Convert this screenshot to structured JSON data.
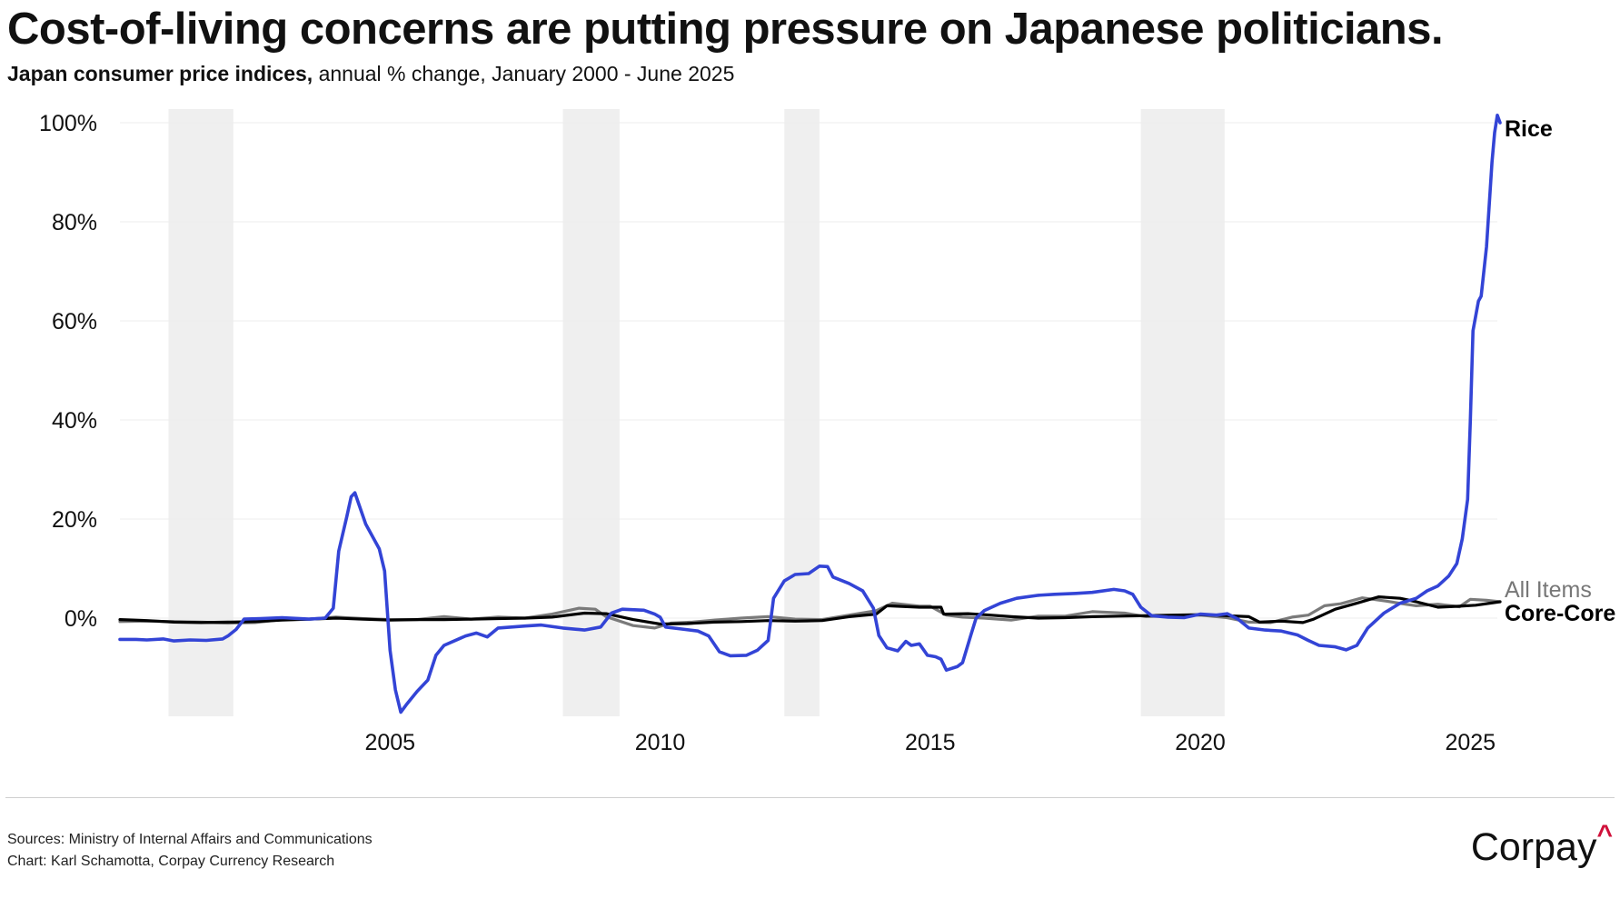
{
  "header": {
    "title": "Cost-of-living concerns are putting pressure on Japanese politicians.",
    "subtitle_bold": "Japan consumer price indices,",
    "subtitle_rest": " annual % change, January 2000 - June 2025"
  },
  "footer": {
    "sources": "Sources: Ministry of Internal Affairs and Communications",
    "credit": "Chart: Karl Schamotta, Corpay Currency Research",
    "logo_text": "Corpay",
    "logo_mark": "^"
  },
  "chart_data": {
    "type": "line",
    "title": "Cost-of-living concerns are putting pressure on Japanese politicians.",
    "subtitle": "Japan consumer price indices, annual % change, January 2000 - June 2025",
    "x_range": [
      2000.0,
      2025.5
    ],
    "ylim": [
      -20,
      102
    ],
    "y_ticks": [
      0,
      20,
      40,
      60,
      80,
      100
    ],
    "y_tick_labels": [
      "0%",
      "20%",
      "40%",
      "60%",
      "80%",
      "100%"
    ],
    "x_ticks": [
      2005,
      2010,
      2015,
      2020,
      2025
    ],
    "x_tick_labels": [
      "2005",
      "2010",
      "2015",
      "2020",
      "2025"
    ],
    "grid": "horizontal",
    "shaded_periods": [
      [
        2000.9,
        2002.1
      ],
      [
        2008.2,
        2009.25
      ],
      [
        2012.3,
        2012.95
      ],
      [
        2018.9,
        2020.45
      ]
    ],
    "shading_color": "#efefef",
    "series": [
      {
        "name": "Rice",
        "color": "#3344d6",
        "points": [
          [
            2000.0,
            -4.3
          ],
          [
            2000.3,
            -4.3
          ],
          [
            2000.5,
            -4.4
          ],
          [
            2000.8,
            -4.2
          ],
          [
            2001.0,
            -4.6
          ],
          [
            2001.3,
            -4.4
          ],
          [
            2001.6,
            -4.5
          ],
          [
            2001.9,
            -4.2
          ],
          [
            2002.0,
            -3.6
          ],
          [
            2002.15,
            -2.3
          ],
          [
            2002.3,
            -0.2
          ],
          [
            2002.6,
            -0.1
          ],
          [
            2003.0,
            0.1
          ],
          [
            2003.5,
            -0.2
          ],
          [
            2003.8,
            0.0
          ],
          [
            2003.95,
            2.0
          ],
          [
            2004.05,
            13.5
          ],
          [
            2004.2,
            20.5
          ],
          [
            2004.28,
            24.5
          ],
          [
            2004.35,
            25.3
          ],
          [
            2004.55,
            19.0
          ],
          [
            2004.8,
            14.0
          ],
          [
            2004.9,
            9.5
          ],
          [
            2005.0,
            -6.5
          ],
          [
            2005.1,
            -14.5
          ],
          [
            2005.2,
            -19.0
          ],
          [
            2005.3,
            -17.5
          ],
          [
            2005.5,
            -14.8
          ],
          [
            2005.7,
            -12.5
          ],
          [
            2005.85,
            -7.5
          ],
          [
            2006.0,
            -5.5
          ],
          [
            2006.4,
            -3.6
          ],
          [
            2006.6,
            -3.0
          ],
          [
            2006.8,
            -3.8
          ],
          [
            2007.0,
            -2.0
          ],
          [
            2007.5,
            -1.6
          ],
          [
            2007.8,
            -1.4
          ],
          [
            2008.2,
            -2.0
          ],
          [
            2008.6,
            -2.4
          ],
          [
            2008.9,
            -1.8
          ],
          [
            2009.1,
            1.0
          ],
          [
            2009.3,
            1.8
          ],
          [
            2009.7,
            1.6
          ],
          [
            2009.9,
            0.8
          ],
          [
            2010.0,
            0.2
          ],
          [
            2010.1,
            -1.8
          ],
          [
            2010.4,
            -2.2
          ],
          [
            2010.7,
            -2.6
          ],
          [
            2010.9,
            -3.6
          ],
          [
            2011.1,
            -6.8
          ],
          [
            2011.3,
            -7.6
          ],
          [
            2011.6,
            -7.5
          ],
          [
            2011.8,
            -6.5
          ],
          [
            2012.0,
            -4.5
          ],
          [
            2012.1,
            4.0
          ],
          [
            2012.3,
            7.5
          ],
          [
            2012.5,
            8.8
          ],
          [
            2012.75,
            9.0
          ],
          [
            2012.95,
            10.5
          ],
          [
            2013.1,
            10.4
          ],
          [
            2013.2,
            8.3
          ],
          [
            2013.5,
            7.0
          ],
          [
            2013.75,
            5.5
          ],
          [
            2013.95,
            2.0
          ],
          [
            2014.05,
            -3.5
          ],
          [
            2014.2,
            -6.0
          ],
          [
            2014.4,
            -6.6
          ],
          [
            2014.55,
            -4.7
          ],
          [
            2014.65,
            -5.5
          ],
          [
            2014.8,
            -5.2
          ],
          [
            2014.95,
            -7.5
          ],
          [
            2015.1,
            -7.8
          ],
          [
            2015.2,
            -8.3
          ],
          [
            2015.3,
            -10.5
          ],
          [
            2015.5,
            -9.8
          ],
          [
            2015.6,
            -9.0
          ],
          [
            2015.75,
            -3.5
          ],
          [
            2015.85,
            0.0
          ],
          [
            2016.0,
            1.5
          ],
          [
            2016.3,
            3.0
          ],
          [
            2016.6,
            4.0
          ],
          [
            2017.0,
            4.6
          ],
          [
            2017.3,
            4.8
          ],
          [
            2017.7,
            5.0
          ],
          [
            2018.0,
            5.2
          ],
          [
            2018.4,
            5.8
          ],
          [
            2018.6,
            5.5
          ],
          [
            2018.75,
            4.8
          ],
          [
            2018.9,
            2.2
          ],
          [
            2019.1,
            0.5
          ],
          [
            2019.4,
            0.2
          ],
          [
            2019.7,
            0.1
          ],
          [
            2020.0,
            0.8
          ],
          [
            2020.3,
            0.6
          ],
          [
            2020.5,
            0.9
          ],
          [
            2020.7,
            -0.2
          ],
          [
            2020.9,
            -2.0
          ],
          [
            2021.2,
            -2.4
          ],
          [
            2021.5,
            -2.6
          ],
          [
            2021.8,
            -3.4
          ],
          [
            2022.0,
            -4.5
          ],
          [
            2022.2,
            -5.5
          ],
          [
            2022.5,
            -5.8
          ],
          [
            2022.7,
            -6.4
          ],
          [
            2022.9,
            -5.5
          ],
          [
            2023.1,
            -2.0
          ],
          [
            2023.4,
            1.0
          ],
          [
            2023.7,
            3.0
          ],
          [
            2024.0,
            4.0
          ],
          [
            2024.2,
            5.5
          ],
          [
            2024.4,
            6.5
          ],
          [
            2024.6,
            8.5
          ],
          [
            2024.75,
            11.0
          ],
          [
            2024.85,
            16.0
          ],
          [
            2024.95,
            24.0
          ],
          [
            2025.0,
            40.0
          ],
          [
            2025.05,
            58.0
          ],
          [
            2025.15,
            64.0
          ],
          [
            2025.2,
            65.0
          ],
          [
            2025.3,
            75.0
          ],
          [
            2025.4,
            92.0
          ],
          [
            2025.45,
            98.0
          ],
          [
            2025.5,
            101.5
          ],
          [
            2025.55,
            100.0
          ]
        ]
      },
      {
        "name": "All Items",
        "color": "#7a7a7a",
        "points": [
          [
            2000.0,
            -0.7
          ],
          [
            2000.5,
            -0.6
          ],
          [
            2001.0,
            -0.7
          ],
          [
            2001.5,
            -0.8
          ],
          [
            2002.0,
            -1.0
          ],
          [
            2002.5,
            -0.9
          ],
          [
            2003.0,
            -0.3
          ],
          [
            2003.5,
            -0.2
          ],
          [
            2004.0,
            0.2
          ],
          [
            2004.5,
            -0.1
          ],
          [
            2005.0,
            -0.3
          ],
          [
            2005.5,
            -0.3
          ],
          [
            2006.0,
            0.3
          ],
          [
            2006.5,
            -0.2
          ],
          [
            2007.0,
            0.2
          ],
          [
            2007.5,
            0.0
          ],
          [
            2008.0,
            0.8
          ],
          [
            2008.5,
            2.0
          ],
          [
            2008.8,
            1.8
          ],
          [
            2009.0,
            0.3
          ],
          [
            2009.5,
            -1.5
          ],
          [
            2009.9,
            -2.0
          ],
          [
            2010.2,
            -1.0
          ],
          [
            2010.6,
            -0.8
          ],
          [
            2011.0,
            -0.4
          ],
          [
            2011.5,
            0.0
          ],
          [
            2012.0,
            0.3
          ],
          [
            2012.5,
            -0.2
          ],
          [
            2013.0,
            -0.3
          ],
          [
            2013.5,
            0.6
          ],
          [
            2014.0,
            1.5
          ],
          [
            2014.3,
            3.0
          ],
          [
            2014.8,
            2.4
          ],
          [
            2015.0,
            2.4
          ],
          [
            2015.3,
            0.6
          ],
          [
            2015.6,
            0.2
          ],
          [
            2016.0,
            0.0
          ],
          [
            2016.5,
            -0.4
          ],
          [
            2017.0,
            0.4
          ],
          [
            2017.5,
            0.4
          ],
          [
            2018.0,
            1.3
          ],
          [
            2018.6,
            1.0
          ],
          [
            2019.0,
            0.3
          ],
          [
            2019.5,
            0.5
          ],
          [
            2020.0,
            0.6
          ],
          [
            2020.5,
            0.1
          ],
          [
            2020.9,
            -0.8
          ],
          [
            2021.3,
            -0.9
          ],
          [
            2021.7,
            0.2
          ],
          [
            2022.0,
            0.6
          ],
          [
            2022.3,
            2.5
          ],
          [
            2022.6,
            2.9
          ],
          [
            2023.0,
            4.1
          ],
          [
            2023.4,
            3.5
          ],
          [
            2023.8,
            2.8
          ],
          [
            2024.0,
            2.5
          ],
          [
            2024.4,
            2.8
          ],
          [
            2024.8,
            2.3
          ],
          [
            2025.0,
            3.8
          ],
          [
            2025.3,
            3.6
          ],
          [
            2025.55,
            3.3
          ]
        ]
      },
      {
        "name": "Core-Core",
        "color": "#000000",
        "points": [
          [
            2000.0,
            -0.3
          ],
          [
            2000.5,
            -0.5
          ],
          [
            2001.0,
            -0.8
          ],
          [
            2001.5,
            -0.9
          ],
          [
            2002.0,
            -0.8
          ],
          [
            2002.5,
            -0.7
          ],
          [
            2003.0,
            -0.4
          ],
          [
            2003.5,
            -0.2
          ],
          [
            2004.0,
            0.0
          ],
          [
            2004.5,
            -0.2
          ],
          [
            2005.0,
            -0.4
          ],
          [
            2005.5,
            -0.3
          ],
          [
            2006.0,
            -0.3
          ],
          [
            2006.5,
            -0.2
          ],
          [
            2007.0,
            -0.1
          ],
          [
            2007.5,
            0.0
          ],
          [
            2008.0,
            0.2
          ],
          [
            2008.6,
            1.0
          ],
          [
            2009.0,
            0.9
          ],
          [
            2009.5,
            -0.3
          ],
          [
            2010.0,
            -1.2
          ],
          [
            2010.5,
            -1.1
          ],
          [
            2011.0,
            -0.8
          ],
          [
            2011.5,
            -0.7
          ],
          [
            2012.0,
            -0.5
          ],
          [
            2012.5,
            -0.6
          ],
          [
            2013.0,
            -0.5
          ],
          [
            2013.5,
            0.3
          ],
          [
            2014.0,
            0.8
          ],
          [
            2014.2,
            2.5
          ],
          [
            2014.8,
            2.2
          ],
          [
            2015.2,
            2.2
          ],
          [
            2015.25,
            0.8
          ],
          [
            2015.7,
            0.9
          ],
          [
            2016.0,
            0.7
          ],
          [
            2016.5,
            0.3
          ],
          [
            2017.0,
            0.0
          ],
          [
            2017.5,
            0.1
          ],
          [
            2018.0,
            0.3
          ],
          [
            2018.5,
            0.4
          ],
          [
            2019.0,
            0.5
          ],
          [
            2019.5,
            0.6
          ],
          [
            2020.0,
            0.7
          ],
          [
            2020.5,
            0.5
          ],
          [
            2020.9,
            0.3
          ],
          [
            2021.1,
            -0.8
          ],
          [
            2021.5,
            -0.6
          ],
          [
            2021.9,
            -0.9
          ],
          [
            2022.1,
            -0.2
          ],
          [
            2022.5,
            1.8
          ],
          [
            2022.9,
            3.0
          ],
          [
            2023.3,
            4.3
          ],
          [
            2023.7,
            4.0
          ],
          [
            2024.0,
            3.3
          ],
          [
            2024.4,
            2.2
          ],
          [
            2024.8,
            2.4
          ],
          [
            2025.1,
            2.6
          ],
          [
            2025.55,
            3.3
          ]
        ]
      }
    ],
    "series_labels": [
      "Rice",
      "All Items",
      "Core-Core"
    ]
  }
}
